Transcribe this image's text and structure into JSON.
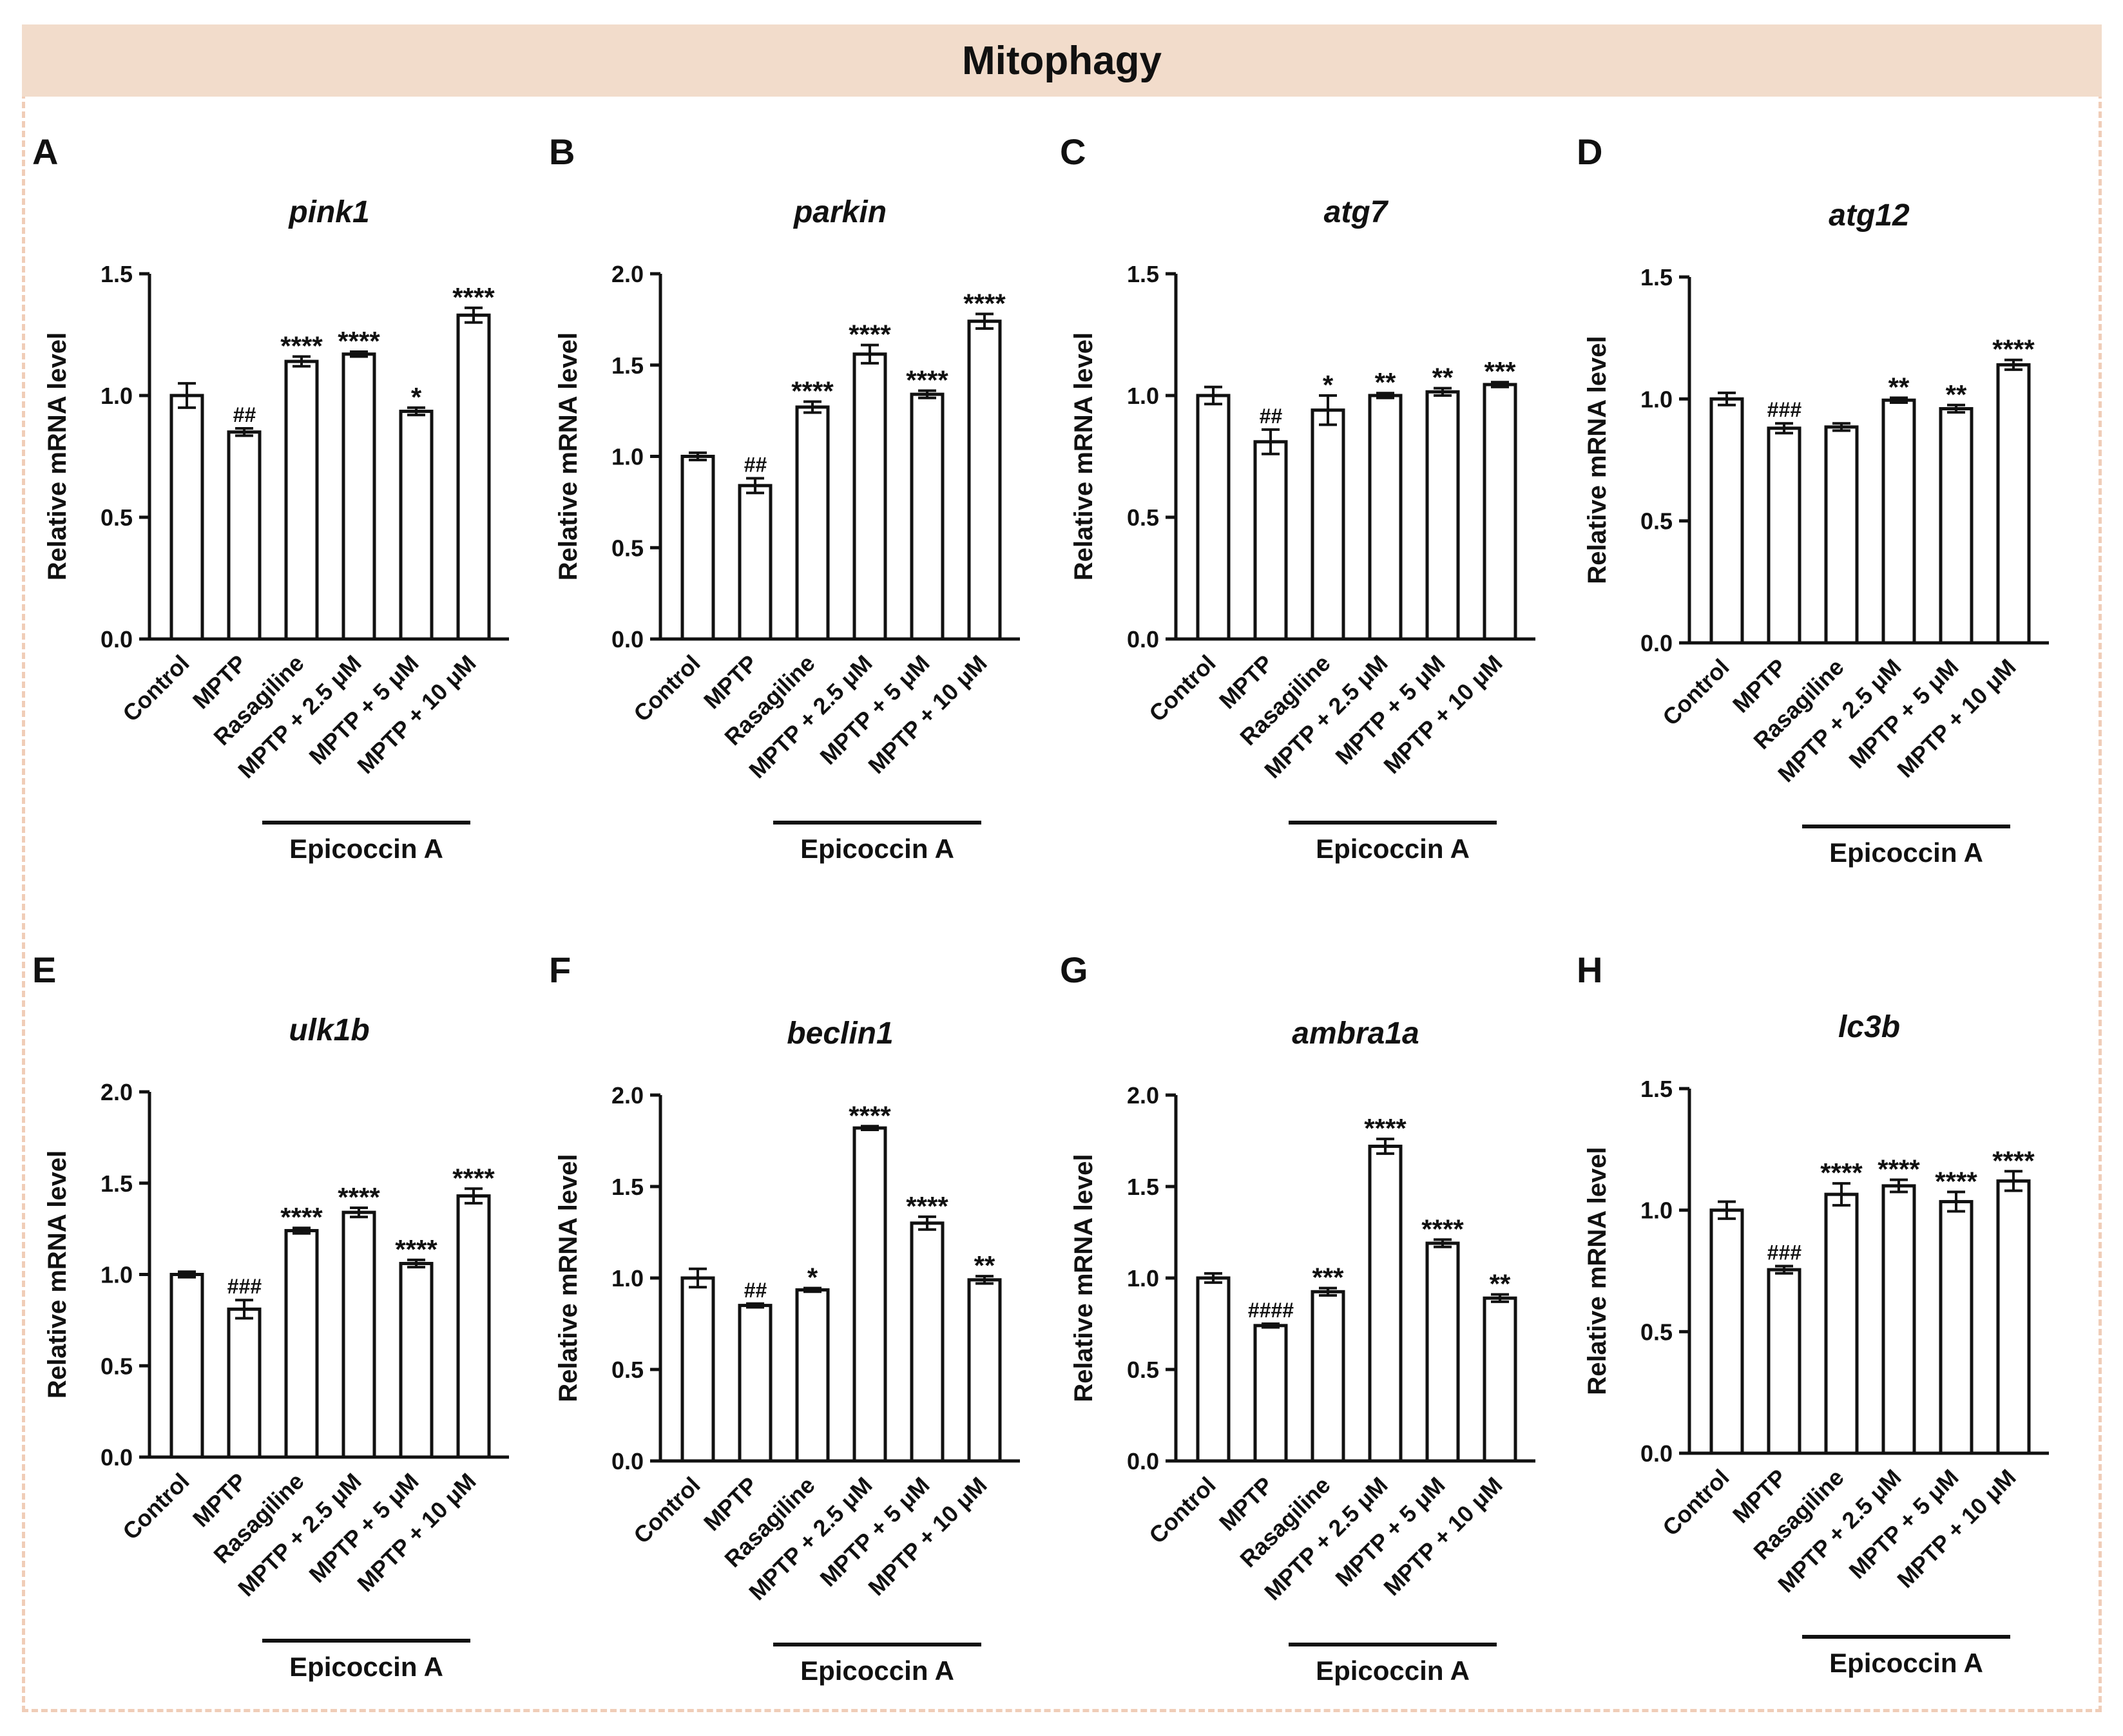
{
  "header": {
    "title": "Mitophagy"
  },
  "shared": {
    "categories": [
      "Control",
      "MPTP",
      "Rasagiline",
      "MPTP + 2.5 μM",
      "MPTP + 5 μM",
      "MPTP + 10 μM"
    ],
    "ylabel": "Relative mRNA level",
    "bracket_label": "Epicoccin A"
  },
  "chart_data": [
    {
      "panel": "A",
      "type": "bar",
      "title": "pink1",
      "ylim": [
        0,
        1.5
      ],
      "yticks": [
        "0.0",
        "0.5",
        "1.0",
        "1.5"
      ],
      "values": [
        1.0,
        0.85,
        1.14,
        1.17,
        0.935,
        1.33
      ],
      "errors": [
        0.05,
        0.015,
        0.02,
        0.01,
        0.015,
        0.03
      ],
      "annotations": [
        "",
        "##",
        "****",
        "****",
        "*",
        "****"
      ]
    },
    {
      "panel": "B",
      "type": "bar",
      "title": "parkin",
      "ylim": [
        0,
        2.0
      ],
      "yticks": [
        "0.0",
        "0.5",
        "1.0",
        "1.5",
        "2.0"
      ],
      "values": [
        1.0,
        0.84,
        1.27,
        1.56,
        1.34,
        1.74
      ],
      "errors": [
        0.02,
        0.04,
        0.03,
        0.05,
        0.02,
        0.04
      ],
      "annotations": [
        "",
        "##",
        "****",
        "****",
        "****",
        "****"
      ]
    },
    {
      "panel": "C",
      "type": "bar",
      "title": "atg7",
      "ylim": [
        0,
        1.5
      ],
      "yticks": [
        "0.0",
        "0.5",
        "1.0",
        "1.5"
      ],
      "values": [
        1.0,
        0.81,
        0.94,
        1.0,
        1.015,
        1.045
      ],
      "errors": [
        0.035,
        0.05,
        0.06,
        0.01,
        0.015,
        0.01
      ],
      "annotations": [
        "",
        "##",
        "*",
        "**",
        "**",
        "***"
      ]
    },
    {
      "panel": "D",
      "type": "bar",
      "title": "atg12",
      "ylim": [
        0,
        1.5
      ],
      "yticks": [
        "0.0",
        "0.5",
        "1.0",
        "1.5"
      ],
      "values": [
        1.0,
        0.88,
        0.885,
        0.995,
        0.96,
        1.14
      ],
      "errors": [
        0.025,
        0.02,
        0.015,
        0.01,
        0.015,
        0.02
      ],
      "annotations": [
        "",
        "###",
        "",
        "**",
        "**",
        "****"
      ]
    },
    {
      "panel": "E",
      "type": "bar",
      "title": "ulk1b",
      "ylim": [
        0,
        2.0
      ],
      "yticks": [
        "0.0",
        "0.5",
        "1.0",
        "1.5",
        "2.0"
      ],
      "values": [
        1.0,
        0.81,
        1.24,
        1.34,
        1.06,
        1.43
      ],
      "errors": [
        0.015,
        0.05,
        0.015,
        0.025,
        0.02,
        0.04
      ],
      "annotations": [
        "",
        "###",
        "****",
        "****",
        "****",
        "****"
      ]
    },
    {
      "panel": "F",
      "type": "bar",
      "title": "beclin1",
      "ylim": [
        0,
        2.0
      ],
      "yticks": [
        "0.0",
        "0.5",
        "1.0",
        "1.5",
        "2.0"
      ],
      "values": [
        1.0,
        0.85,
        0.935,
        1.82,
        1.3,
        0.99
      ],
      "errors": [
        0.05,
        0.01,
        0.01,
        0.01,
        0.035,
        0.02
      ],
      "annotations": [
        "",
        "##",
        "*",
        "****",
        "****",
        "**"
      ]
    },
    {
      "panel": "G",
      "type": "bar",
      "title": "ambra1a",
      "ylim": [
        0,
        2.0
      ],
      "yticks": [
        "0.0",
        "0.5",
        "1.0",
        "1.5",
        "2.0"
      ],
      "values": [
        1.0,
        0.74,
        0.925,
        1.72,
        1.19,
        0.89
      ],
      "errors": [
        0.025,
        0.01,
        0.02,
        0.04,
        0.02,
        0.02
      ],
      "annotations": [
        "",
        "####",
        "***",
        "****",
        "****",
        "**"
      ]
    },
    {
      "panel": "H",
      "type": "bar",
      "title": "lc3b",
      "ylim": [
        0,
        1.5
      ],
      "yticks": [
        "0.0",
        "0.5",
        "1.0",
        "1.5"
      ],
      "values": [
        1.0,
        0.755,
        1.065,
        1.1,
        1.035,
        1.12
      ],
      "errors": [
        0.035,
        0.015,
        0.045,
        0.025,
        0.04,
        0.04
      ],
      "annotations": [
        "",
        "###",
        "****",
        "****",
        "****",
        "****"
      ]
    }
  ]
}
